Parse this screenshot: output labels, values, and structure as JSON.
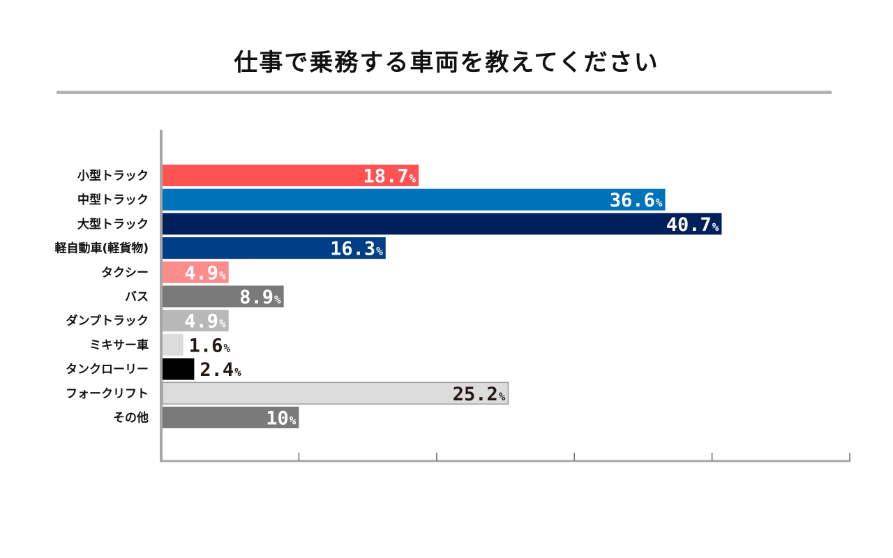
{
  "chart_data": {
    "type": "bar",
    "orientation": "horizontal",
    "title": "仕事で乗務する車両を教えてください",
    "unit": "%",
    "xlim": [
      0,
      50
    ],
    "grid": false,
    "legend": "none",
    "categories": [
      "小型トラック",
      "中型トラック",
      "大型トラック",
      "軽自動車(軽貨物)",
      "タクシー",
      "バス",
      "ダンプトラック",
      "ミキサー車",
      "タンクローリー",
      "フォークリフト",
      "その他"
    ],
    "values": [
      18.7,
      36.6,
      40.7,
      16.3,
      4.9,
      8.9,
      4.9,
      1.6,
      2.4,
      25.2,
      10
    ],
    "value_labels": [
      "18.7",
      "36.6",
      "40.7",
      "16.3",
      "4.9",
      "8.9",
      "4.9",
      "1.6",
      "2.4",
      "25.2",
      "10"
    ],
    "colors": [
      "#ff5252",
      "#0072bc",
      "#00205b",
      "#003f87",
      "#ff8c8c",
      "#7a7a7a",
      "#b8b8b8",
      "#dcdcdc",
      "#000000",
      "#dcdcdc",
      "#7a7a7a"
    ],
    "label_colors": [
      "#ffffff",
      "#ffffff",
      "#ffffff",
      "#ffffff",
      "#ffffff",
      "#ffffff",
      "#ffffff",
      "#231815",
      "#231815",
      "#231815",
      "#ffffff"
    ],
    "label_positions": [
      "inside",
      "inside",
      "inside",
      "inside",
      "inside",
      "inside",
      "inside",
      "outside",
      "outside",
      "inside",
      "inside"
    ]
  }
}
